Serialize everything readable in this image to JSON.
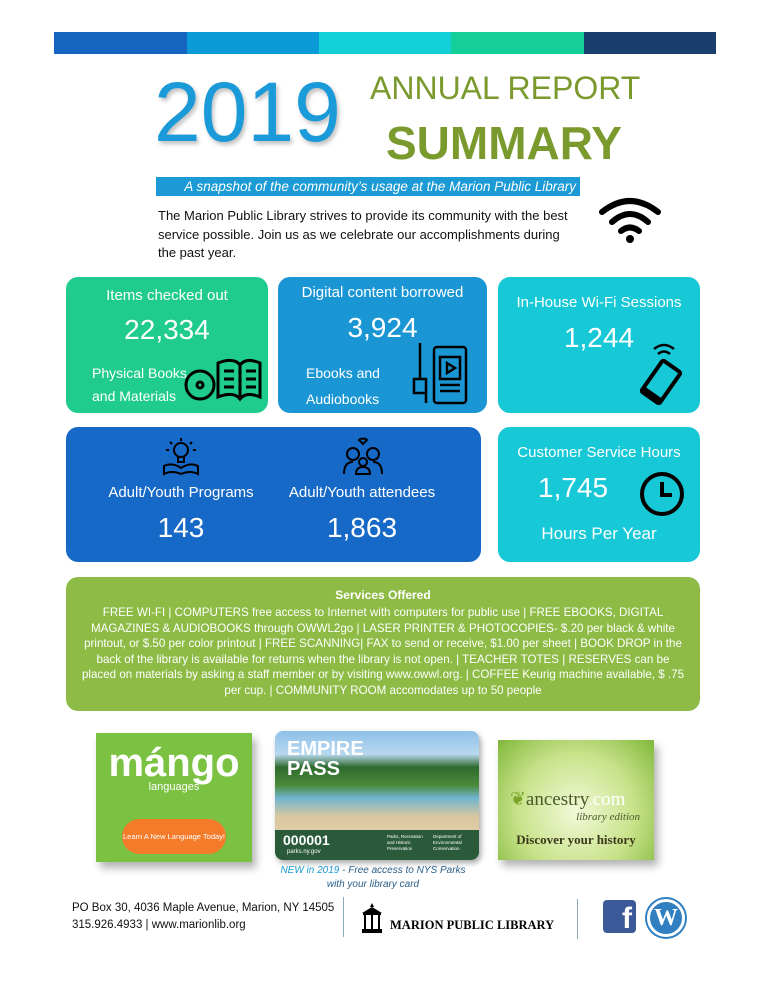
{
  "header": {
    "year": "2019",
    "title_line1": "ANNUAL REPORT",
    "title_line2": "SUMMARY",
    "tagline": "A snapshot of the community’s usage at the Marion Public Library",
    "intro": "The Marion Public Library strives to provide its community with the best service possible.  Join us as we celebrate our accomplishments during the past year.",
    "colors": {
      "year": "#1a9ad8",
      "title": "#7a9a2e",
      "banner": "#1b9ad6"
    },
    "top_bar_colors": [
      "#1565c0",
      "#0a9ad6",
      "#12cfd8",
      "#14cf98",
      "#1a3f6e"
    ],
    "icon": "wifi-icon"
  },
  "stats": {
    "checked_out": {
      "title": "Items checked out",
      "value": "22,334",
      "sub1": "Physical Books",
      "sub2": "and Materials",
      "icon": "books-disc-icon",
      "color": "#1fcc8e"
    },
    "digital": {
      "title": "Digital content borrowed",
      "value": "3,924",
      "sub1": "Ebooks and",
      "sub2": "Audiobooks",
      "icon": "ebook-audio-icon",
      "color": "#1b96d4"
    },
    "wifi": {
      "title": "In-House Wi-Fi Sessions",
      "value": "1,244",
      "icon": "phone-wifi-icon",
      "color": "#17c8d6"
    },
    "programs": {
      "title": "Adult/Youth Programs",
      "value": "143",
      "icon": "lightbulb-book-icon"
    },
    "attendees": {
      "title": "Adult/Youth attendees",
      "value": "1,863",
      "icon": "family-icon",
      "color": "#1769c7"
    },
    "service_hours": {
      "title": "Customer Service Hours",
      "value": "1,745",
      "sub": "Hours Per Year",
      "icon": "clock-icon",
      "color": "#17c8d6"
    }
  },
  "services": {
    "title": "Services Offered",
    "text": "FREE WI-FI | COMPUTERS free access to Internet with computers for public use  | FREE EBOOKS, DIGITAL MAGAZINES & AUDIOBOOKS through OWWL2go | LASER PRINTER & PHOTOCOPIES-  $.20 per black & white printout, or $.50 per color printout | FREE SCANNING| FAX to send or receive, $1.00 per sheet | BOOK DROP in the back of the library is available for returns when the library is not open. | TEACHER TOTES | RESERVES can be placed on materials by asking a staff member or by visiting www.owwl.org. | COFFEE Keurig machine available, $ .75 per cup. | COMMUNITY ROOM accomodates up to 50 people",
    "color": "#8dbb45"
  },
  "promos": {
    "mango": {
      "logo": "mángo",
      "sub": "languages",
      "button": "Learn A New Language Today!"
    },
    "empire": {
      "title1": "EMPIRE",
      "title2": "PASS",
      "number": "000001",
      "url": "parks.ny.gov",
      "org1": "Parks, Recreation and Historic Preservation",
      "org2": "Department of Environmental Conservation"
    },
    "empire_caption_highlight": "NEW in 2019",
    "empire_caption_rest": " - Free access to NYS Parks",
    "empire_caption_line2": "with your library card",
    "ancestry": {
      "logo": "ancestry",
      "logo_suffix": ".com",
      "edition": "library edition",
      "tagline": "Discover your history"
    }
  },
  "footer": {
    "address": "PO Box 30, 4036 Maple Avenue, Marion, NY 14505",
    "contact": "315.926.4933 | www.marionlib.org",
    "library_name": "MARION PUBLIC LIBRARY",
    "social": [
      "facebook-icon",
      "wordpress-icon"
    ]
  }
}
